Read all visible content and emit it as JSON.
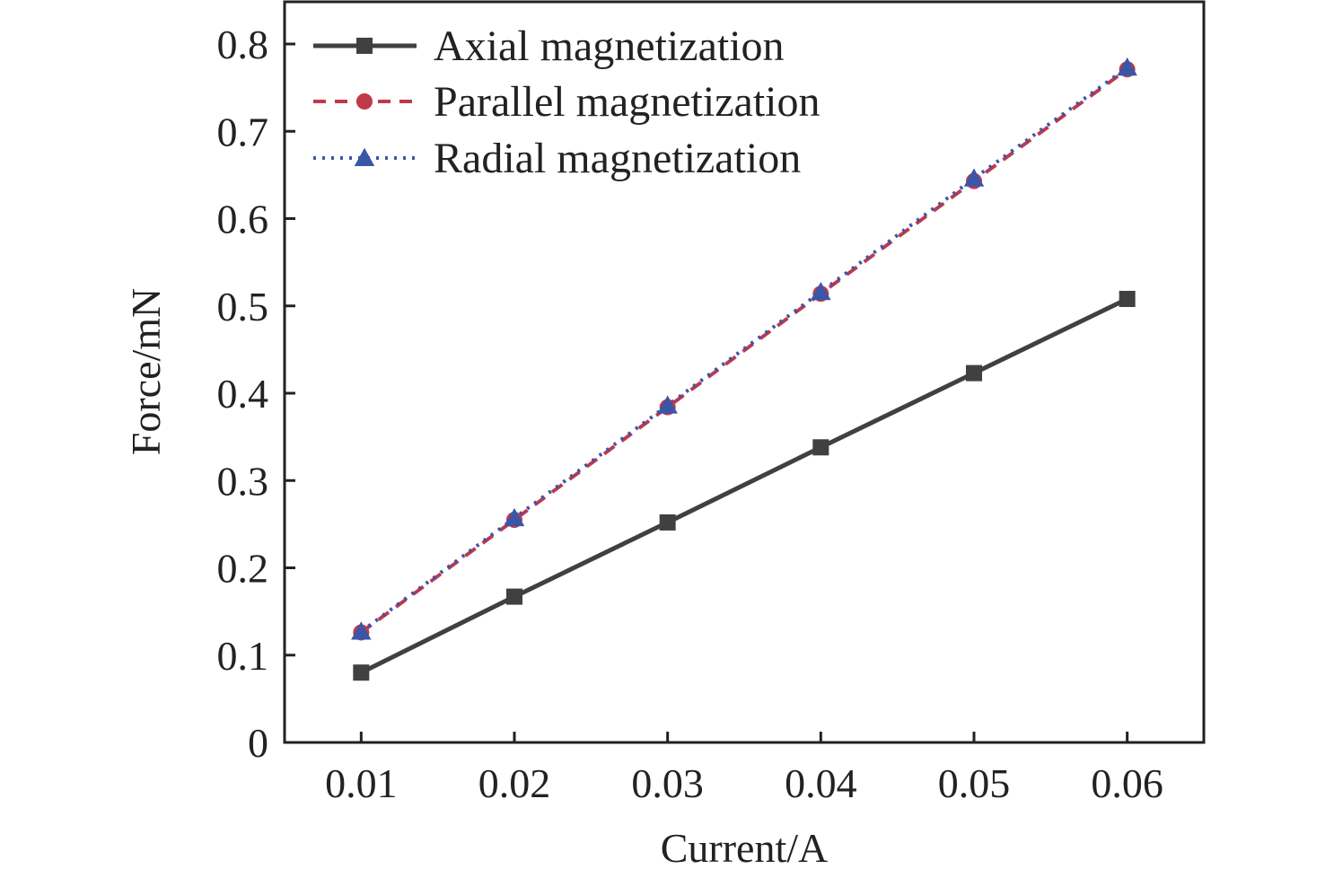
{
  "chart_data": {
    "type": "line",
    "title": "",
    "xlabel": "Current/A",
    "ylabel": "Force/mN",
    "x": [
      0.01,
      0.02,
      0.03,
      0.04,
      0.05,
      0.06
    ],
    "x_tick_labels": [
      "0.01",
      "0.02",
      "0.03",
      "0.04",
      "0.05",
      "0.06"
    ],
    "y_tick_labels": [
      "0",
      "0.1",
      "0.2",
      "0.3",
      "0.4",
      "0.5",
      "0.6",
      "0.7",
      "0.8"
    ],
    "xlim": [
      0.005,
      0.065
    ],
    "ylim": [
      0,
      0.8
    ],
    "grid": false,
    "legend_position": "top-left",
    "series": [
      {
        "name": "Axial magnetization",
        "values": [
          0.08,
          0.167,
          0.252,
          0.338,
          0.423,
          0.508
        ],
        "color": "#404040",
        "line_style": "solid",
        "marker": "square"
      },
      {
        "name": "Parallel magnetization",
        "values": [
          0.126,
          0.255,
          0.384,
          0.514,
          0.643,
          0.771
        ],
        "color": "#c0394b",
        "line_style": "dashed",
        "marker": "circle"
      },
      {
        "name": "Radial magnetization",
        "values": [
          0.127,
          0.257,
          0.386,
          0.516,
          0.646,
          0.773
        ],
        "color": "#3a56a8",
        "line_style": "dotted",
        "marker": "triangle"
      }
    ]
  }
}
